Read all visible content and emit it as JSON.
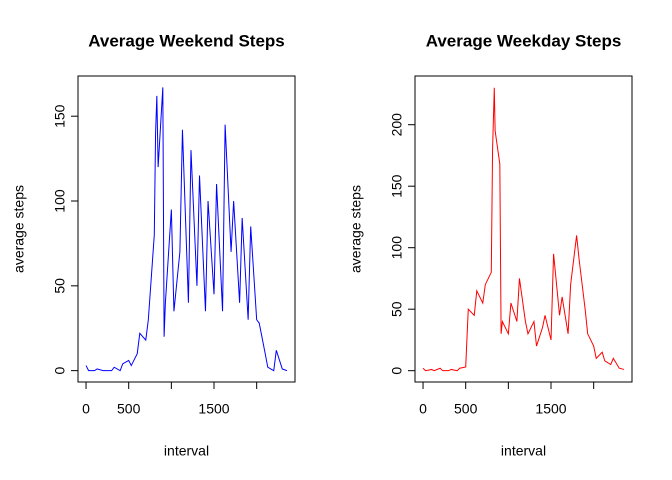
{
  "chart_data": [
    {
      "type": "line",
      "title": "Average Weekend Steps",
      "xlabel": "interval",
      "ylabel": "average steps",
      "color": "#0000ff",
      "xlim": [
        -94.2,
        2449.2
      ],
      "ylim": [
        -6.7,
        173.7
      ],
      "xticks": [
        0,
        500,
        1500
      ],
      "xticks_unlabeled": [
        1000,
        2000
      ],
      "yticks": [
        0,
        50,
        100,
        150
      ],
      "series": [
        {
          "name": "weekend",
          "color": "#0000ff",
          "x": [
            0,
            30,
            100,
            130,
            200,
            230,
            300,
            330,
            400,
            430,
            500,
            530,
            600,
            630,
            700,
            730,
            800,
            815,
            830,
            845,
            900,
            915,
            930,
            1000,
            1030,
            1100,
            1130,
            1200,
            1230,
            1300,
            1330,
            1400,
            1430,
            1500,
            1530,
            1600,
            1630,
            1700,
            1730,
            1800,
            1830,
            1900,
            1930,
            2000,
            2030,
            2100,
            2130,
            2200,
            2230,
            2300,
            2355
          ],
          "values": [
            3,
            0,
            0,
            1,
            0,
            0,
            0,
            2,
            0,
            4,
            6,
            3,
            10,
            22,
            18,
            30,
            80,
            140,
            162,
            120,
            167,
            20,
            40,
            95,
            35,
            70,
            142,
            40,
            130,
            50,
            115,
            35,
            100,
            45,
            110,
            35,
            145,
            70,
            100,
            40,
            90,
            30,
            85,
            30,
            28,
            10,
            2,
            0,
            12,
            1,
            0
          ]
        }
      ]
    },
    {
      "type": "line",
      "title": "Average Weekday Steps",
      "xlabel": "interval",
      "ylabel": "average steps",
      "color": "#ff0000",
      "xlim": [
        -94.2,
        2449.2
      ],
      "ylim": [
        -9.2,
        239.6
      ],
      "xticks": [
        0,
        500,
        1500
      ],
      "xticks_unlabeled": [
        1000,
        2000
      ],
      "yticks": [
        0,
        50,
        100,
        150,
        200
      ],
      "series": [
        {
          "name": "weekday",
          "color": "#ff0000",
          "x": [
            0,
            30,
            100,
            130,
            200,
            230,
            300,
            330,
            400,
            430,
            500,
            530,
            600,
            630,
            700,
            730,
            800,
            815,
            835,
            845,
            900,
            915,
            930,
            1000,
            1030,
            1100,
            1130,
            1200,
            1230,
            1300,
            1330,
            1400,
            1430,
            1500,
            1530,
            1600,
            1630,
            1700,
            1730,
            1800,
            1830,
            1900,
            1930,
            2000,
            2030,
            2100,
            2130,
            2200,
            2230,
            2300,
            2355
          ],
          "values": [
            2,
            0,
            1,
            0,
            2,
            0,
            0,
            1,
            0,
            2,
            3,
            50,
            45,
            65,
            55,
            70,
            80,
            180,
            230,
            195,
            168,
            30,
            40,
            30,
            55,
            40,
            75,
            40,
            30,
            40,
            20,
            35,
            45,
            25,
            95,
            45,
            60,
            30,
            70,
            110,
            90,
            50,
            30,
            20,
            10,
            15,
            8,
            5,
            10,
            2,
            1
          ]
        }
      ]
    }
  ]
}
